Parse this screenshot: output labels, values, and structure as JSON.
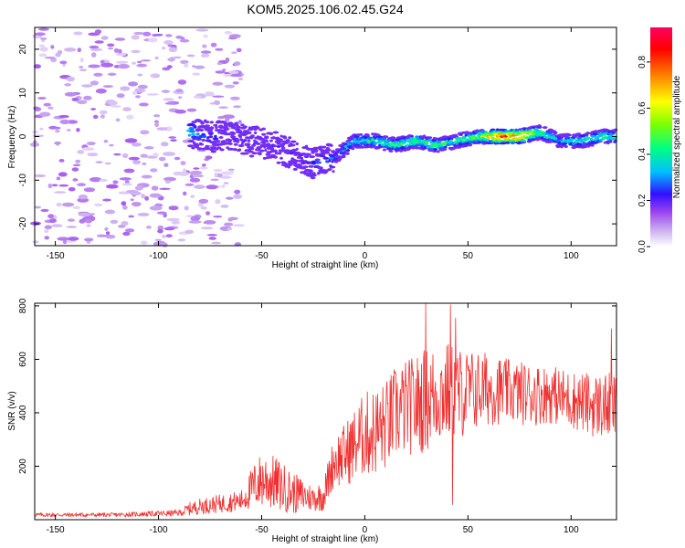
{
  "title": "KOM5.2025.106.02.45.G24",
  "colors": {
    "snr_line": "#f03030",
    "colormap": [
      "#ffffff",
      "#c8a8f0",
      "#9a40f0",
      "#3010ff",
      "#00c0ff",
      "#00ff80",
      "#80ff00",
      "#ffff00",
      "#ff8000",
      "#ff0000",
      "#ff0060"
    ]
  },
  "chart_data": [
    {
      "type": "heatmap",
      "name": "spectrogram",
      "xlabel": "Height of straight line (km)",
      "ylabel": "Frequency (Hz)",
      "xlim": [
        -160,
        122
      ],
      "ylim": [
        -25,
        25
      ],
      "xticks": [
        -150,
        -100,
        -50,
        0,
        50,
        100
      ],
      "yticks": [
        -20,
        -10,
        0,
        10,
        20
      ],
      "colorbar": {
        "label": "Normalized spectral amplitude",
        "range": [
          0,
          0.95
        ],
        "ticks": [
          0.0,
          0.2,
          0.4,
          0.6,
          0.8
        ]
      },
      "ridge": {
        "x": [
          -85,
          -75,
          -65,
          -55,
          -45,
          -35,
          -25,
          -15,
          -5,
          5,
          15,
          25,
          35,
          45,
          55,
          65,
          75,
          85,
          95,
          105,
          115,
          122
        ],
        "freq": [
          1,
          0,
          0,
          -1,
          -2,
          -4,
          -6,
          -5,
          -1,
          -1,
          -2,
          -1,
          -2,
          -1,
          0,
          0,
          0,
          1,
          -1,
          -1,
          0,
          0
        ],
        "amplitude": [
          0.35,
          0.25,
          0.2,
          0.2,
          0.2,
          0.2,
          0.25,
          0.3,
          0.4,
          0.45,
          0.5,
          0.5,
          0.5,
          0.45,
          0.55,
          0.9,
          0.85,
          0.5,
          0.35,
          0.45,
          0.5,
          0.45
        ]
      },
      "noise_region": {
        "x": [
          -160,
          -85
        ],
        "freq": [
          -25,
          25
        ],
        "amplitude": 0.05
      }
    },
    {
      "type": "line",
      "name": "snr",
      "xlabel": "Height of straight line (km)",
      "ylabel": "SNR (v/v)",
      "xlim": [
        -160,
        122
      ],
      "ylim": [
        0,
        810
      ],
      "xticks": [
        -150,
        -100,
        -50,
        0,
        50,
        100
      ],
      "yticks": [
        200,
        400,
        600,
        800
      ],
      "envelope": {
        "x": [
          -160,
          -120,
          -90,
          -85,
          -80,
          -70,
          -60,
          -52,
          -48,
          -42,
          -35,
          -25,
          -20,
          -15,
          -10,
          -5,
          0,
          5,
          10,
          15,
          20,
          25,
          30,
          35,
          40,
          45,
          50,
          60,
          70,
          80,
          90,
          100,
          110,
          122
        ],
        "mean": [
          18,
          18,
          25,
          40,
          50,
          60,
          70,
          140,
          150,
          130,
          100,
          80,
          90,
          220,
          240,
          280,
          320,
          330,
          350,
          400,
          420,
          430,
          450,
          470,
          480,
          470,
          480,
          490,
          480,
          470,
          470,
          450,
          430,
          420
        ],
        "amp": [
          8,
          8,
          12,
          25,
          30,
          35,
          40,
          100,
          110,
          100,
          80,
          50,
          60,
          100,
          120,
          140,
          160,
          170,
          170,
          180,
          180,
          190,
          200,
          190,
          190,
          180,
          160,
          140,
          120,
          120,
          110,
          110,
          120,
          130
        ]
      },
      "peaks": [
        {
          "x": 29.5,
          "y": 810
        },
        {
          "x": 41.5,
          "y": 805
        },
        {
          "x": 44.0,
          "y": 755
        },
        {
          "x": 119.5,
          "y": 715
        }
      ],
      "dips": [
        {
          "x": 42.5,
          "y": 55
        }
      ]
    }
  ]
}
